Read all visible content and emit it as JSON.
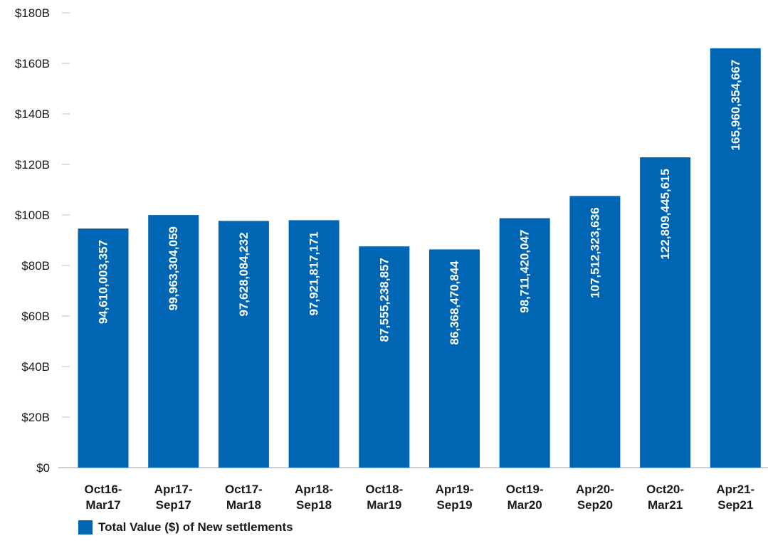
{
  "colors": {
    "bar": "#0066b3",
    "axis": "#bfbfbf",
    "text": "#1a1a1a",
    "bar_label": "#ffffff"
  },
  "chart_data": {
    "type": "bar",
    "title": "",
    "xlabel": "",
    "ylabel": "",
    "ylim": [
      0,
      180000000000
    ],
    "yticks": [
      0,
      20000000000,
      40000000000,
      60000000000,
      80000000000,
      100000000000,
      120000000000,
      140000000000,
      160000000000,
      180000000000
    ],
    "ytick_labels": [
      "$0",
      "$20B",
      "$40B",
      "$60B",
      "$80B",
      "$100B",
      "$120B",
      "$140B",
      "$160B",
      "$180B"
    ],
    "categories": [
      [
        "Oct16-",
        "Mar17"
      ],
      [
        "Apr17-",
        "Sep17"
      ],
      [
        "Oct17-",
        "Mar18"
      ],
      [
        "Apr18-",
        "Sep18"
      ],
      [
        "Oct18-",
        "Mar19"
      ],
      [
        "Apr19-",
        "Sep19"
      ],
      [
        "Oct19-",
        "Mar20"
      ],
      [
        "Apr20-",
        "Sep20"
      ],
      [
        "Oct20-",
        "Mar21"
      ],
      [
        "Apr21-",
        "Sep21"
      ]
    ],
    "series": [
      {
        "name": "Total Value ($) of New settlements",
        "values": [
          94610003357,
          99963304059,
          97628084232,
          97921817171,
          87555238857,
          86368470844,
          98711420047,
          107512323636,
          122809445615,
          165960354667
        ],
        "labels": [
          "94,610,003,357",
          "99,963,304,059",
          "97,628,084,232",
          "97,921,817,171",
          "87,555,238,857",
          "86,368,470,844",
          "98,711,420,047",
          "107,512,323,636",
          "122,809,445,615",
          "165,960,354,667"
        ]
      }
    ],
    "grid": false,
    "legend_position": "bottom-left"
  }
}
